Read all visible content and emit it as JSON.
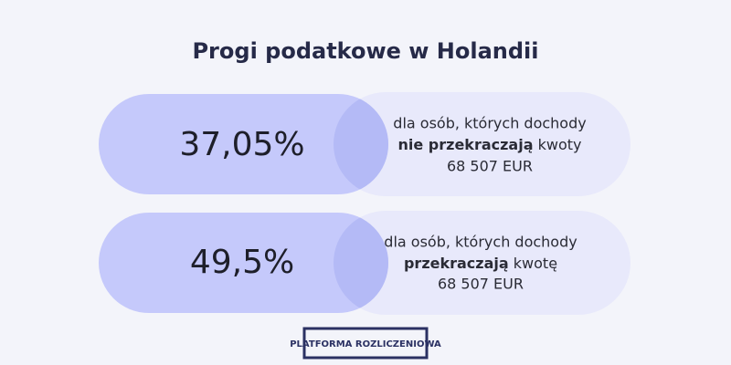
{
  "title": "Progi podatkowe w Holandii",
  "brackets": [
    {
      "rate": "37,05%",
      "description": {
        "line1": "dla osób, których dochody",
        "line2_bold": "nie przekraczają",
        "line2_rest": " kwoty",
        "line3": "68 507 EUR"
      }
    },
    {
      "rate": "49,5%",
      "description": {
        "line1": "dla osób, których dochody",
        "line2_bold": "przekraczają",
        "line2_rest": " kwotę",
        "line3": "68 507 EUR"
      }
    }
  ],
  "logo": "PLATFORMA ROZLICZENIOWA"
}
